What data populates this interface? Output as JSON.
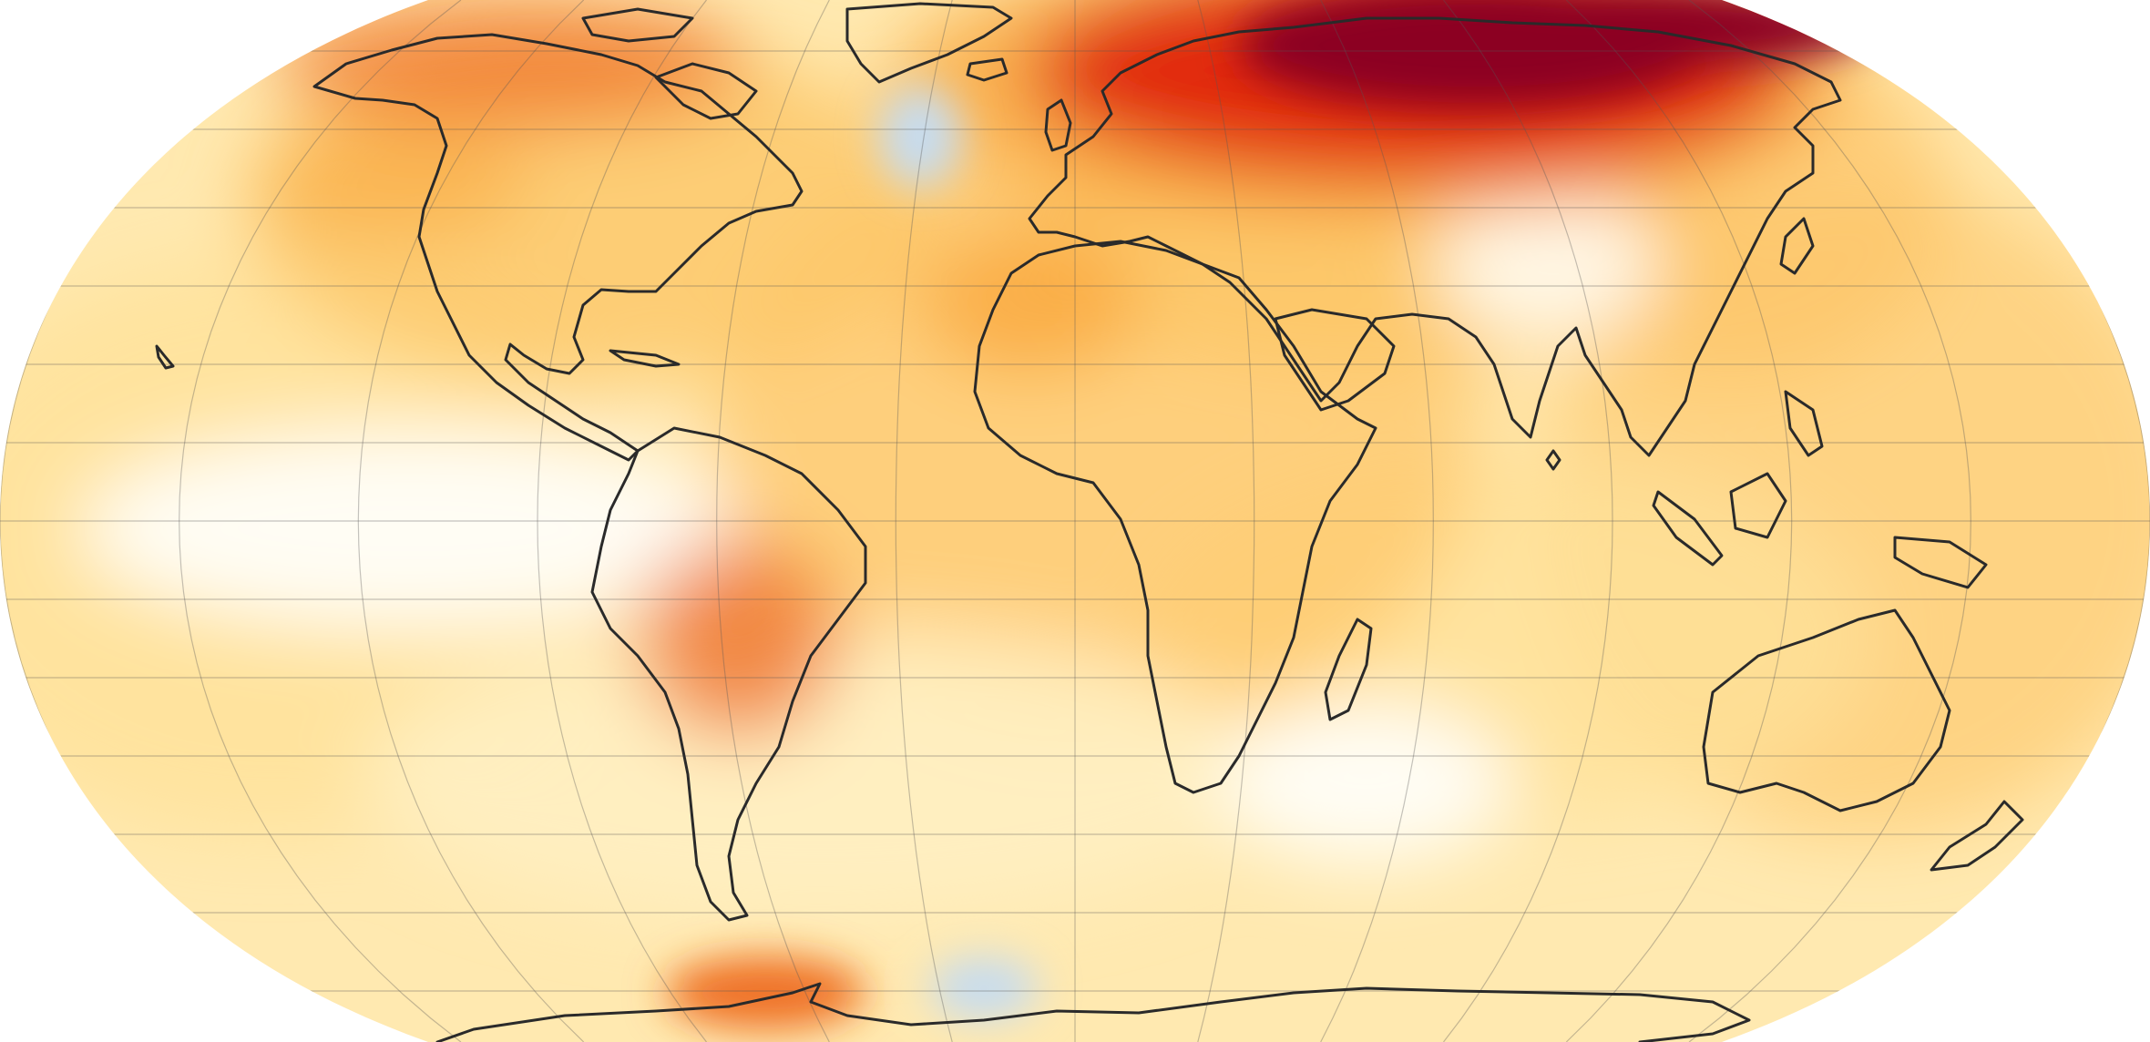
{
  "map": {
    "type": "choropleth-anomaly",
    "projection": "Robinson",
    "palette": {
      "cold": "#c6dcf0",
      "neutral": "#fffdf4",
      "pale": "#fff0c2",
      "light": "#ffe29a",
      "warm": "#fdc566",
      "orange": "#f9a63b",
      "hot": "#ee6a1c",
      "red": "#e0220e",
      "deep": "#8c0020"
    },
    "regions": [
      {
        "name": "siberia-arctic",
        "level": "deep"
      },
      {
        "name": "northern-europe-russia",
        "level": "red"
      },
      {
        "name": "arctic-canada",
        "level": "hot"
      },
      {
        "name": "north-atlantic-south-of-greenland",
        "level": "cold"
      },
      {
        "name": "eastern-tropical-pacific",
        "level": "neutral"
      },
      {
        "name": "south-central-brazil",
        "level": "hot"
      },
      {
        "name": "north-africa",
        "level": "orange"
      },
      {
        "name": "antarctic-peninsula",
        "level": "hot"
      },
      {
        "name": "weddell-sea",
        "level": "cold"
      }
    ],
    "graticule": true,
    "legend": "none",
    "icons": [
      "world-map"
    ]
  }
}
